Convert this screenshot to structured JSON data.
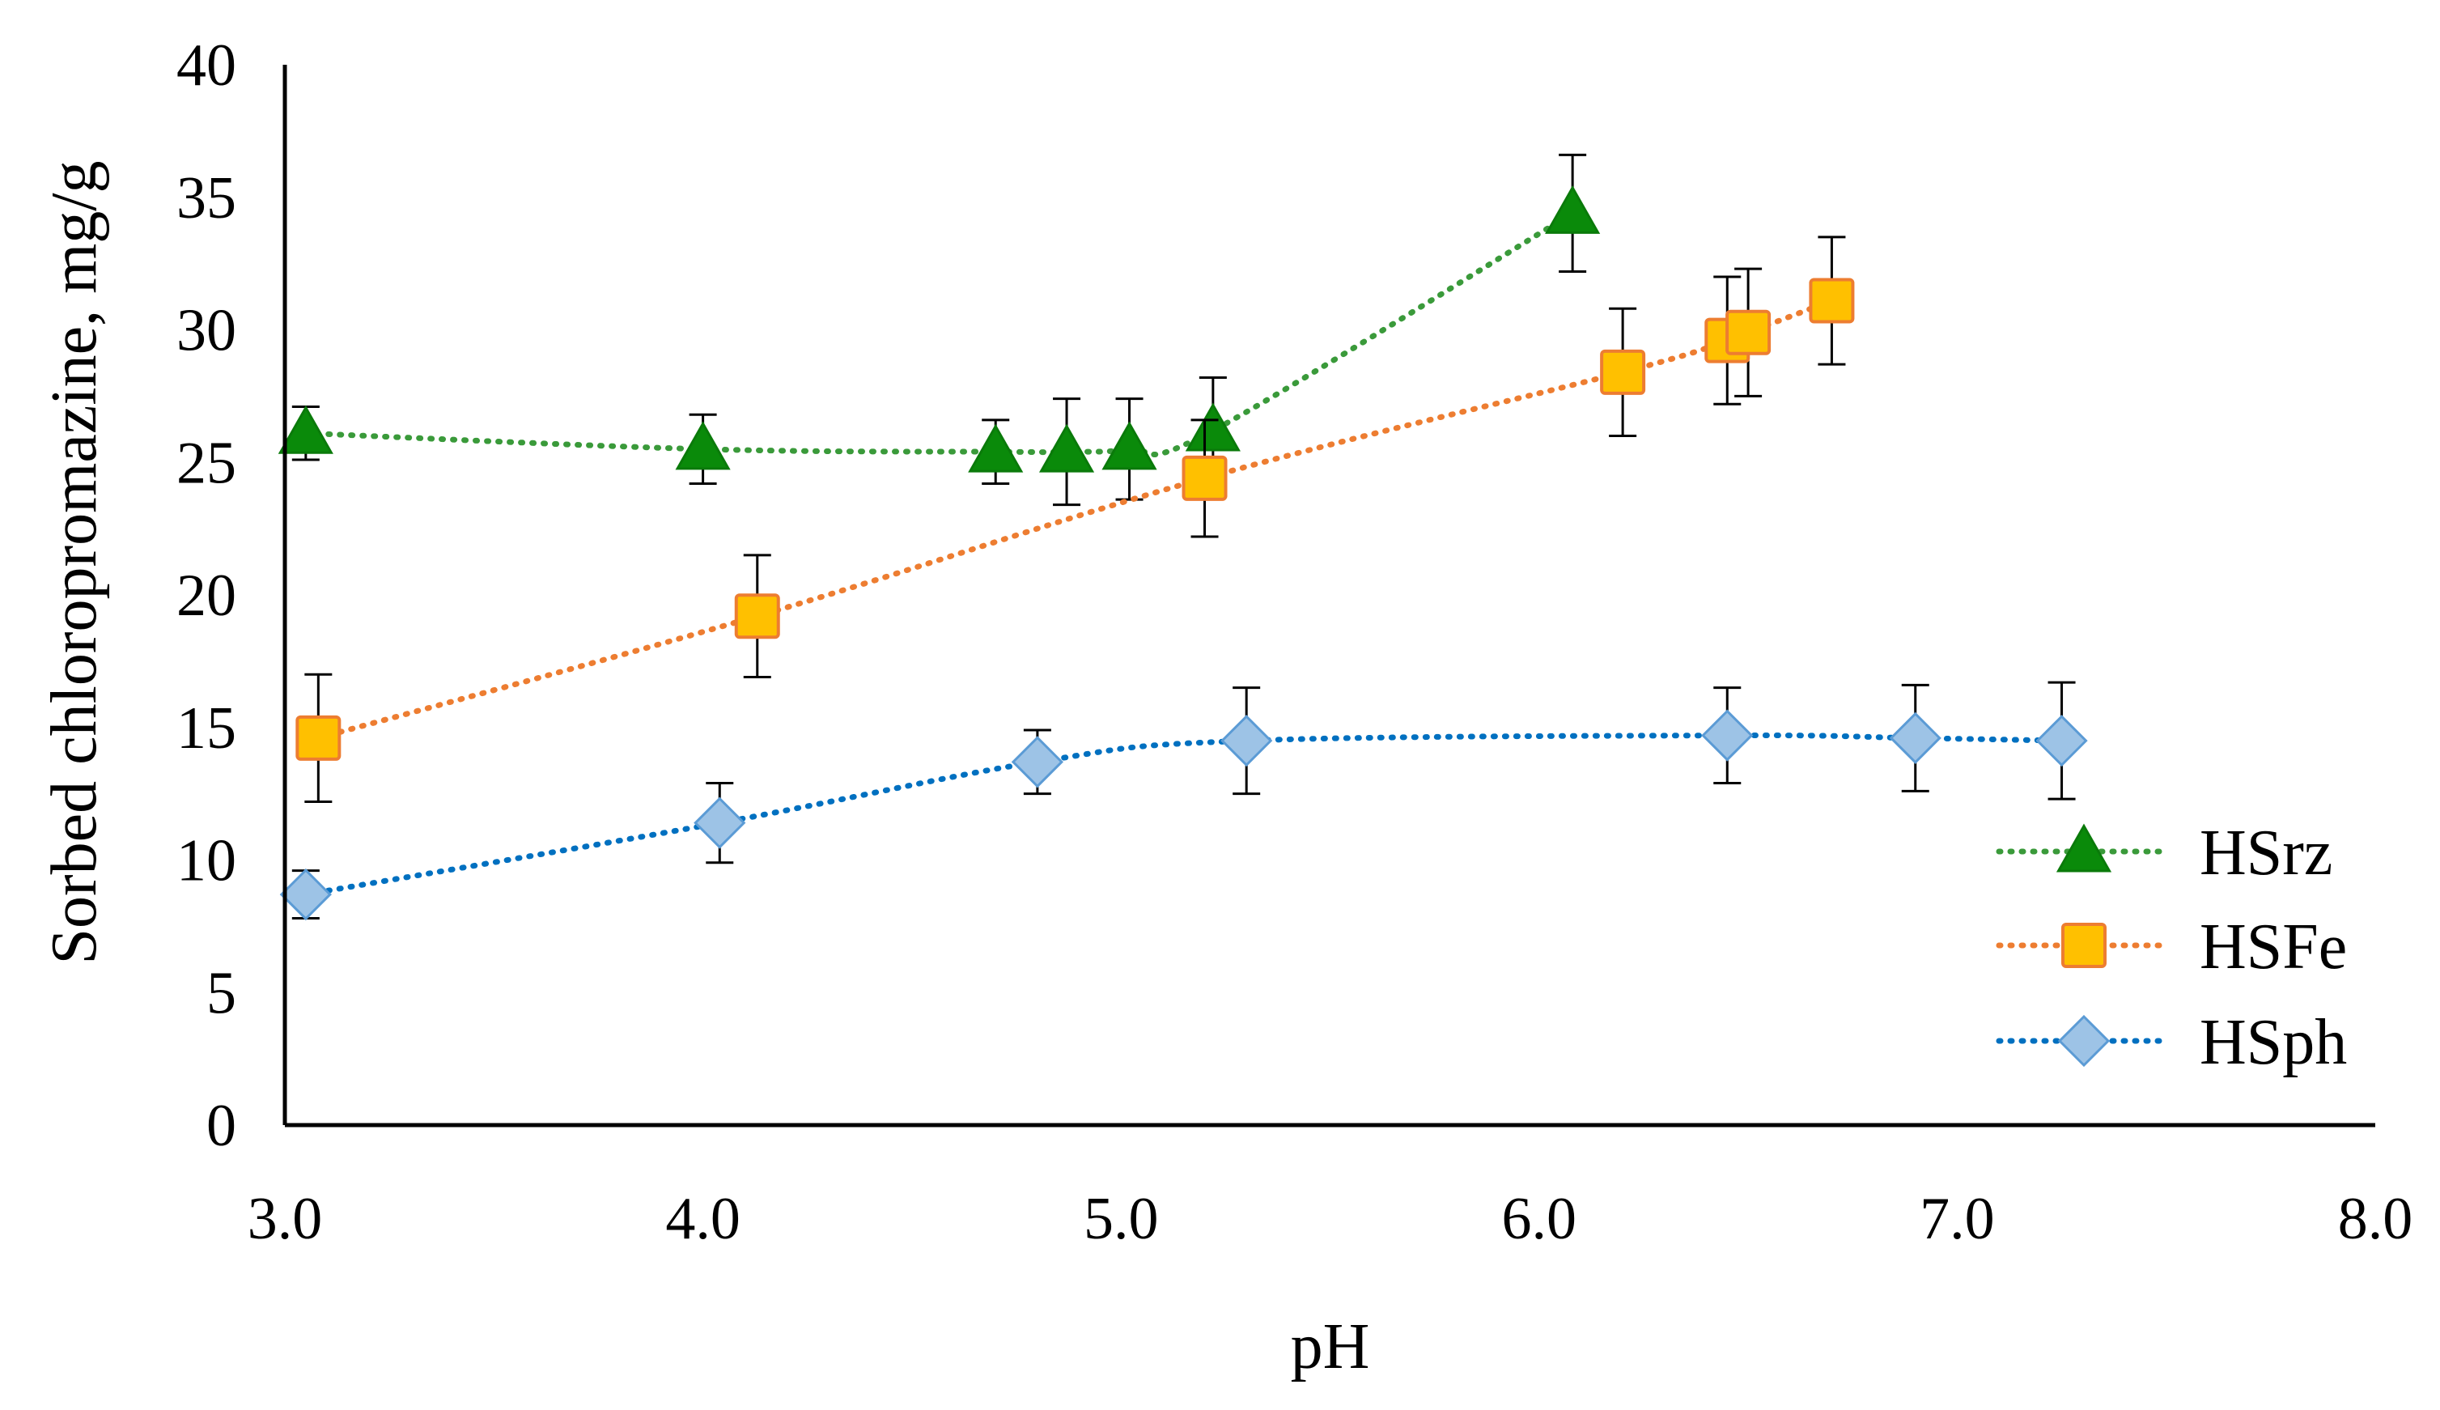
{
  "chart_data": {
    "type": "scatter",
    "title": "",
    "xlabel": "pH",
    "ylabel": "Sorbed chloropromazine, mg/g",
    "xlim": [
      3.0,
      8.0
    ],
    "ylim": [
      0,
      40
    ],
    "x_ticks": [
      "3.0",
      "4.0",
      "5.0",
      "6.0",
      "7.0",
      "8.0"
    ],
    "y_ticks": [
      "0",
      "5",
      "10",
      "15",
      "20",
      "25",
      "30",
      "35",
      "40"
    ],
    "x_tick_values": [
      3.0,
      4.0,
      5.0,
      6.0,
      7.0,
      8.0
    ],
    "y_tick_values": [
      0,
      5,
      10,
      15,
      20,
      25,
      30,
      35,
      40
    ],
    "grid": false,
    "legend_position": "bottom-right",
    "error_bars": true,
    "series": [
      {
        "name": "HSrz",
        "marker": "triangle",
        "line_color": "#3a9a3a",
        "fill": "#0a8a0a",
        "stroke": "#0a7a0a",
        "x": [
          3.05,
          4.0,
          4.7,
          4.87,
          5.02,
          5.22,
          6.08
        ],
        "y": [
          26.1,
          25.5,
          25.4,
          25.4,
          25.5,
          26.2,
          34.4
        ],
        "yerr": [
          1.0,
          1.3,
          1.2,
          2.0,
          1.9,
          2.0,
          2.2
        ]
      },
      {
        "name": "HSFe",
        "marker": "square",
        "line_color": "#ed7d31",
        "fill": "#ffc000",
        "stroke": "#ed7d31",
        "x": [
          3.08,
          4.13,
          5.2,
          6.2,
          6.45,
          6.5,
          6.7
        ],
        "y": [
          14.6,
          19.2,
          24.4,
          28.4,
          29.6,
          29.9,
          31.1
        ],
        "yerr": [
          2.4,
          2.3,
          2.2,
          2.4,
          2.4,
          2.4,
          2.4
        ]
      },
      {
        "name": "HSph",
        "marker": "diamond",
        "line_color": "#0070c0",
        "fill": "#9dc3e6",
        "stroke": "#5b9bd5",
        "x": [
          3.05,
          4.04,
          4.8,
          5.3,
          6.45,
          6.9,
          7.25
        ],
        "y": [
          8.7,
          11.4,
          13.7,
          14.5,
          14.7,
          14.6,
          14.5
        ],
        "yerr": [
          0.9,
          1.5,
          1.2,
          2.0,
          1.8,
          2.0,
          2.2
        ]
      }
    ]
  }
}
